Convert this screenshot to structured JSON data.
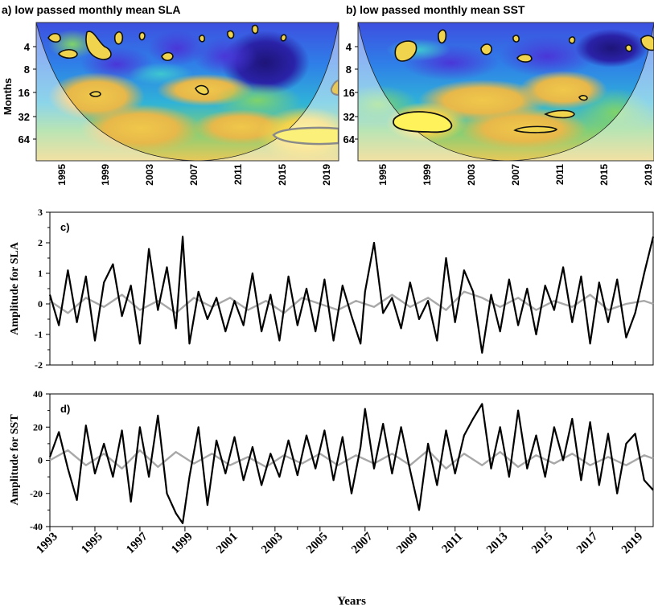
{
  "figure": {
    "panel_a_title": "a) low passed monthly mean SLA",
    "panel_b_title": "b) low passed monthly mean SST",
    "panel_c_label": "c)",
    "panel_d_label": "d)",
    "months_label": "Months",
    "years_label": "Years"
  },
  "chart_data": [
    {
      "type": "heatmap",
      "title": "a) low passed monthly mean SLA",
      "ylabel": "Months",
      "period_ticks": [
        "4",
        "8",
        "16",
        "32",
        "64"
      ],
      "period_values": [
        4,
        8,
        16,
        32,
        64
      ],
      "year_ticks": [
        "1995",
        "1999",
        "2003",
        "2007",
        "2011",
        "2015",
        "2019"
      ],
      "year_values": [
        1995,
        1999,
        2003,
        2007,
        2011,
        2015,
        2019
      ],
      "xlim": [
        1993,
        2020
      ],
      "ylim": [
        2,
        128
      ],
      "colormap": [
        "#2f1c8c",
        "#3b49d8",
        "#2f86e8",
        "#1ec3c6",
        "#7fd36a",
        "#e4c64a",
        "#fff25a"
      ],
      "significant_regions_approx": [
        {
          "year": 1993.8,
          "period": 3.2
        },
        {
          "year": 1994.5,
          "period": 4.6
        },
        {
          "year": 1997.2,
          "period": 4.8
        },
        {
          "year": 1999.5,
          "period": 3.1
        },
        {
          "year": 1998.1,
          "period": 15
        },
        {
          "year": 2005.6,
          "period": 5.2
        },
        {
          "year": 2007.6,
          "period": 14
        },
        {
          "year": 2017.6,
          "period": 80
        }
      ]
    },
    {
      "type": "heatmap",
      "title": "b) low passed monthly mean SST",
      "period_ticks": [
        "4",
        "8",
        "16",
        "32",
        "64"
      ],
      "period_values": [
        4,
        8,
        16,
        32,
        64
      ],
      "year_ticks": [
        "1995",
        "1999",
        "2003",
        "2007",
        "2011",
        "2015",
        "2019"
      ],
      "year_values": [
        1995,
        1999,
        2003,
        2007,
        2011,
        2015,
        2019
      ],
      "xlim": [
        1993,
        2020
      ],
      "ylim": [
        2,
        128
      ],
      "colormap": [
        "#2f1c8c",
        "#3b49d8",
        "#2f86e8",
        "#1ec3c6",
        "#7fd36a",
        "#e4c64a",
        "#fff25a"
      ],
      "significant_regions_approx": [
        {
          "year": 1996.4,
          "period": 4.5
        },
        {
          "year": 1999.6,
          "period": 3.0
        },
        {
          "year": 2001.3,
          "period": 4.2
        },
        {
          "year": 2004.3,
          "period": 3.6
        },
        {
          "year": 2006.1,
          "period": 3.0
        },
        {
          "year": 2008.2,
          "period": 5.2
        },
        {
          "year": 1999.4,
          "period": 36
        },
        {
          "year": 2008.8,
          "period": 46
        },
        {
          "year": 2011.6,
          "period": 31
        },
        {
          "year": 2014.0,
          "period": 24
        },
        {
          "year": 2019.4,
          "period": 3.6
        }
      ]
    },
    {
      "type": "line",
      "title": "c)",
      "ylabel": "Amplitude for SLA",
      "ylim": [
        -2,
        3
      ],
      "y_ticks": [
        -2,
        -1,
        0,
        1,
        2,
        3
      ],
      "xlim": [
        1993,
        2019.8
      ],
      "series": [
        {
          "color": "#000000",
          "x": [
            1993.0,
            1993.4,
            1993.8,
            1994.2,
            1994.6,
            1995.0,
            1995.4,
            1995.8,
            1996.2,
            1996.6,
            1997.0,
            1997.4,
            1997.8,
            1998.2,
            1998.6,
            1998.9,
            1999.2,
            1999.6,
            2000.0,
            2000.4,
            2000.8,
            2001.2,
            2001.6,
            2002.0,
            2002.4,
            2002.8,
            2003.2,
            2003.6,
            2004.0,
            2004.4,
            2004.8,
            2005.2,
            2005.6,
            2006.0,
            2006.4,
            2006.8,
            2007.0,
            2007.4,
            2007.8,
            2008.2,
            2008.6,
            2009.0,
            2009.4,
            2009.8,
            2010.2,
            2010.6,
            2011.0,
            2011.4,
            2011.8,
            2012.2,
            2012.6,
            2013.0,
            2013.4,
            2013.8,
            2014.2,
            2014.6,
            2015.0,
            2015.4,
            2015.8,
            2016.2,
            2016.6,
            2017.0,
            2017.4,
            2017.8,
            2018.2,
            2018.6,
            2019.0,
            2019.4,
            2019.8
          ],
          "y": [
            0.3,
            -0.7,
            1.1,
            -0.6,
            0.9,
            -1.2,
            0.7,
            1.3,
            -0.4,
            0.6,
            -1.3,
            1.8,
            -0.2,
            1.2,
            -0.8,
            2.2,
            -1.3,
            0.4,
            -0.5,
            0.2,
            -0.9,
            0.1,
            -0.7,
            1.0,
            -0.9,
            0.3,
            -1.2,
            0.9,
            -0.7,
            0.5,
            -0.9,
            0.8,
            -1.2,
            0.6,
            -0.4,
            -1.3,
            0.4,
            2.0,
            -0.3,
            0.2,
            -0.8,
            0.7,
            -0.5,
            0.1,
            -1.2,
            1.5,
            -0.6,
            1.1,
            0.4,
            -1.6,
            0.3,
            -0.9,
            0.8,
            -0.7,
            0.5,
            -1.0,
            0.6,
            -0.2,
            1.2,
            -0.6,
            0.9,
            -1.3,
            0.7,
            -0.6,
            0.8,
            -1.1,
            -0.3,
            1.0,
            2.2
          ]
        },
        {
          "color": "#a8a8a8",
          "x": [
            1993.0,
            1993.8,
            1994.6,
            1995.4,
            1996.2,
            1997.0,
            1997.8,
            1998.6,
            1999.4,
            2000.2,
            2001.0,
            2001.8,
            2002.6,
            2003.4,
            2004.2,
            2005.0,
            2005.8,
            2006.6,
            2007.4,
            2008.2,
            2009.0,
            2009.8,
            2010.6,
            2011.4,
            2012.2,
            2013.0,
            2013.8,
            2014.6,
            2015.4,
            2016.2,
            2017.0,
            2017.8,
            2018.6,
            2019.4,
            2019.8
          ],
          "y": [
            0.1,
            -0.3,
            0.2,
            -0.1,
            0.3,
            -0.2,
            0.1,
            -0.3,
            0.2,
            -0.1,
            0.2,
            -0.2,
            0.1,
            -0.3,
            0.2,
            0.0,
            -0.2,
            0.1,
            -0.1,
            0.3,
            -0.1,
            0.2,
            -0.2,
            0.4,
            0.2,
            -0.1,
            0.2,
            -0.2,
            0.1,
            -0.1,
            0.3,
            -0.2,
            0.0,
            0.1,
            0.0
          ]
        }
      ]
    },
    {
      "type": "line",
      "title": "d)",
      "ylabel": "Amplitude for SST",
      "xlabel": "Years",
      "ylim": [
        -40,
        40
      ],
      "y_ticks": [
        -40,
        -20,
        0,
        20,
        40
      ],
      "x_ticks": [
        "1993",
        "1995",
        "1997",
        "1999",
        "2001",
        "2003",
        "2005",
        "2007",
        "2009",
        "2011",
        "2013",
        "2015",
        "2017",
        "2019"
      ],
      "x_tick_values": [
        1993,
        1995,
        1997,
        1999,
        2001,
        2003,
        2005,
        2007,
        2009,
        2011,
        2013,
        2015,
        2017,
        2019
      ],
      "xlim": [
        1993,
        2019.8
      ],
      "series": [
        {
          "color": "#000000",
          "x": [
            1993.0,
            1993.4,
            1993.8,
            1994.2,
            1994.6,
            1995.0,
            1995.4,
            1995.8,
            1996.2,
            1996.6,
            1997.0,
            1997.4,
            1997.8,
            1998.2,
            1998.6,
            1998.9,
            1999.2,
            1999.6,
            2000.0,
            2000.4,
            2000.8,
            2001.2,
            2001.6,
            2002.0,
            2002.4,
            2002.8,
            2003.2,
            2003.6,
            2004.0,
            2004.4,
            2004.8,
            2005.2,
            2005.6,
            2006.0,
            2006.4,
            2006.8,
            2007.0,
            2007.4,
            2007.8,
            2008.2,
            2008.6,
            2009.0,
            2009.4,
            2009.8,
            2010.2,
            2010.6,
            2011.0,
            2011.4,
            2011.8,
            2012.2,
            2012.6,
            2013.0,
            2013.4,
            2013.8,
            2014.2,
            2014.6,
            2015.0,
            2015.4,
            2015.8,
            2016.2,
            2016.6,
            2017.0,
            2017.4,
            2017.8,
            2018.2,
            2018.6,
            2019.0,
            2019.4,
            2019.8
          ],
          "y": [
            2,
            17,
            -5,
            -24,
            21,
            -8,
            10,
            -10,
            18,
            -25,
            20,
            -10,
            27,
            -20,
            -32,
            -38,
            -10,
            20,
            -27,
            12,
            -8,
            14,
            -12,
            8,
            -15,
            4,
            -10,
            12,
            -9,
            15,
            -5,
            18,
            -12,
            14,
            -20,
            8,
            31,
            -5,
            22,
            -8,
            20,
            -6,
            -30,
            10,
            -15,
            18,
            -8,
            15,
            25,
            34,
            -5,
            20,
            -10,
            30,
            -5,
            15,
            -10,
            20,
            0,
            25,
            -12,
            23,
            -15,
            16,
            -20,
            10,
            16,
            -12,
            -18
          ]
        },
        {
          "color": "#a8a8a8",
          "x": [
            1993.0,
            1993.8,
            1994.6,
            1995.4,
            1996.2,
            1997.0,
            1997.8,
            1998.6,
            1999.4,
            2000.2,
            2001.0,
            2001.8,
            2002.6,
            2003.4,
            2004.2,
            2005.0,
            2005.8,
            2006.6,
            2007.4,
            2008.2,
            2009.0,
            2009.8,
            2010.6,
            2011.4,
            2012.2,
            2013.0,
            2013.8,
            2014.6,
            2015.4,
            2016.2,
            2017.0,
            2017.8,
            2018.6,
            2019.4,
            2019.8
          ],
          "y": [
            0,
            6,
            -3,
            4,
            -5,
            6,
            -4,
            5,
            -2,
            4,
            -3,
            2,
            -4,
            3,
            -2,
            4,
            -3,
            3,
            -2,
            4,
            -3,
            6,
            -5,
            4,
            -3,
            5,
            -4,
            3,
            -2,
            4,
            -3,
            2,
            -3,
            3,
            1
          ]
        }
      ]
    }
  ]
}
